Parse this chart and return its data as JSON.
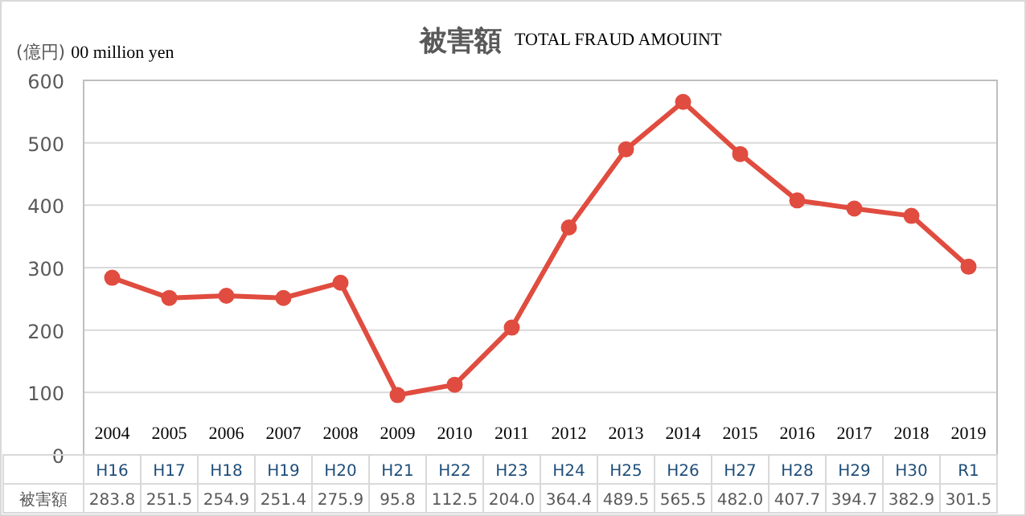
{
  "chart_data": {
    "type": "line",
    "title": "被害額",
    "subtitle": "TOTAL FRAUD AMOUINT",
    "ylabel": "(億円) 00 million yen",
    "categories": [
      "2004\nH16",
      "2005\nH17",
      "2006\nH18",
      "2007\nH19",
      "2008\nH20",
      "2009\nH21",
      "2010\nH22",
      "2011\nH23",
      "2012\nH24",
      "2013\nH25",
      "2014\nH26",
      "2015\nH27",
      "2016\nH28",
      "2017\nH29",
      "2018\nH30",
      "2019\nR1"
    ],
    "series": [
      {
        "name": "被害額",
        "color": "#e04c3f",
        "values": [
          283.8,
          251.5,
          254.9,
          251.4,
          275.9,
          95.8,
          112.5,
          204.0,
          364.4,
          489.5,
          565.5,
          482.0,
          407.7,
          394.7,
          382.9,
          301.5
        ],
        "value_labels": [
          "283.8",
          "251.5",
          "254.9",
          "251.4",
          "275.9",
          "95.8",
          "112.5",
          "204.0",
          "364.4",
          "489.5",
          "565.5",
          "482.0",
          "407.7",
          "394.7",
          "382.9",
          "301.5"
        ]
      }
    ],
    "ylim": [
      0,
      600
    ],
    "yticks": [
      0,
      100,
      200,
      300,
      400,
      500,
      600
    ],
    "grid": "y",
    "marker": "circle",
    "line_style": "solid"
  }
}
